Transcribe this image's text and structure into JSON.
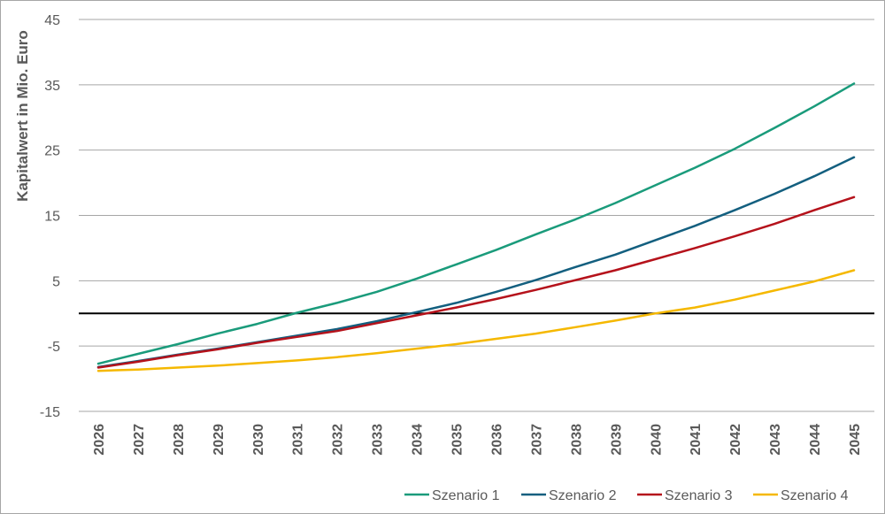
{
  "chart_data": {
    "type": "line",
    "title": "",
    "xlabel": "",
    "ylabel": "Kapitalwert in Mio. Euro",
    "ylim": [
      -15,
      45
    ],
    "yticks": [
      "45",
      "35",
      "25",
      "15",
      "5",
      "-5",
      "-15"
    ],
    "ytick_values": [
      45,
      35,
      25,
      15,
      5,
      -5,
      -15
    ],
    "zero_line": 0,
    "grid": true,
    "legend_position": "bottom-right",
    "x": [
      "2026",
      "2027",
      "2028",
      "2029",
      "2030",
      "2031",
      "2032",
      "2033",
      "2034",
      "2035",
      "2036",
      "2037",
      "2038",
      "2039",
      "2040",
      "2041",
      "2042",
      "2043",
      "2044",
      "2045"
    ],
    "series": [
      {
        "name": "Szenario 1",
        "color": "#1a9b7b",
        "values": [
          -7.7,
          -6.2,
          -4.7,
          -3.1,
          -1.6,
          0.1,
          1.6,
          3.3,
          5.3,
          7.5,
          9.7,
          12.1,
          14.4,
          16.9,
          19.6,
          22.3,
          25.2,
          28.4,
          31.7,
          35.2
        ]
      },
      {
        "name": "Szenario 2",
        "color": "#135f7f",
        "values": [
          -8.2,
          -7.3,
          -6.3,
          -5.4,
          -4.4,
          -3.4,
          -2.4,
          -1.2,
          0.2,
          1.6,
          3.3,
          5.1,
          7.1,
          9.0,
          11.2,
          13.4,
          15.8,
          18.3,
          21.0,
          23.9
        ]
      },
      {
        "name": "Szenario 3",
        "color": "#b5121b",
        "values": [
          -8.3,
          -7.4,
          -6.4,
          -5.5,
          -4.5,
          -3.6,
          -2.7,
          -1.5,
          -0.3,
          0.9,
          2.2,
          3.6,
          5.1,
          6.6,
          8.3,
          10.0,
          11.8,
          13.7,
          15.8,
          17.8
        ]
      },
      {
        "name": "Szenario 4",
        "color": "#f5b800",
        "values": [
          -8.8,
          -8.6,
          -8.3,
          -8.0,
          -7.6,
          -7.2,
          -6.7,
          -6.1,
          -5.4,
          -4.7,
          -3.9,
          -3.1,
          -2.1,
          -1.1,
          0.0,
          0.9,
          2.1,
          3.5,
          4.9,
          6.6
        ]
      }
    ]
  }
}
